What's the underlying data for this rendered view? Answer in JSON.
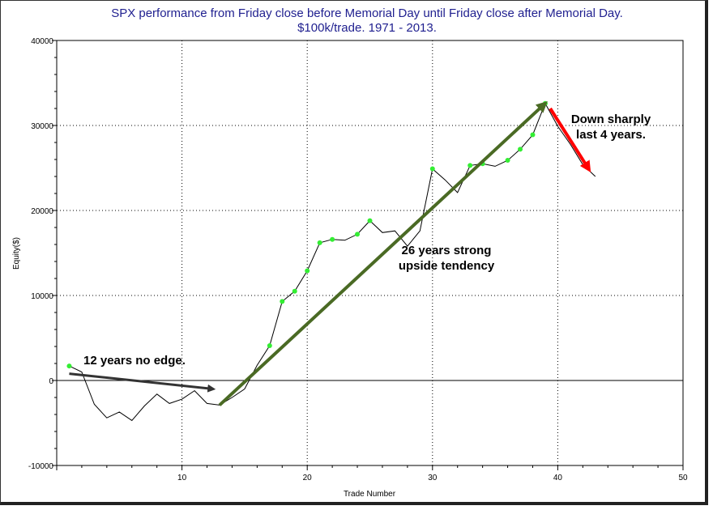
{
  "chart_data": {
    "type": "line",
    "title_lines": [
      "SPX performance from Friday close before Memorial Day until Friday close after Memorial Day.",
      "$100k/trade. 1971 - 2013."
    ],
    "xlabel": "Trade Number",
    "ylabel": "Equity($)",
    "xlim": [
      0,
      50
    ],
    "ylim": [
      -10000,
      40000
    ],
    "x_ticks": [
      10,
      20,
      30,
      40,
      50
    ],
    "y_ticks": [
      -10000,
      0,
      10000,
      20000,
      30000,
      40000
    ],
    "grid": "dotted",
    "series": [
      {
        "color": "#000000",
        "x": [
          1,
          2,
          3,
          4,
          5,
          6,
          7,
          8,
          9,
          10,
          11,
          12,
          13,
          14,
          15,
          16,
          17,
          18,
          19,
          20,
          21,
          22,
          23,
          24,
          25,
          26,
          27,
          28,
          29,
          30,
          31,
          32,
          33,
          34,
          35,
          36,
          37,
          38,
          39,
          40,
          41,
          42,
          43
        ],
        "y": [
          1700,
          1000,
          -2800,
          -4400,
          -3700,
          -4700,
          -3000,
          -1600,
          -2700,
          -2200,
          -1200,
          -2700,
          -2900,
          -2000,
          -1000,
          1800,
          4100,
          9300,
          10500,
          12900,
          16200,
          16600,
          16500,
          17200,
          18800,
          17400,
          17600,
          15800,
          17600,
          24900,
          23600,
          22100,
          25300,
          25500,
          25200,
          25900,
          27200,
          28900,
          32600,
          29900,
          27800,
          25400,
          24000
        ]
      }
    ],
    "highlight_color": "#33ee33",
    "highlight_x": [
      1,
      17,
      18,
      19,
      20,
      21,
      22,
      24,
      25,
      30,
      33,
      34,
      36,
      37,
      38,
      39
    ],
    "annotations": [
      {
        "text": "12 years no edge.",
        "arrow_color": "#333333",
        "arrow_from": [
          1,
          800
        ],
        "arrow_to": [
          12.5,
          -1000
        ]
      },
      {
        "text": "26 years strong",
        "text2": "upside tendency",
        "arrow_color": "#4a6a24",
        "arrow_from": [
          13,
          -2900
        ],
        "arrow_to": [
          39,
          32600
        ]
      },
      {
        "text": "Down sharply",
        "text2": "last 4 years.",
        "arrow_color": "#ff0000",
        "arrow_from": [
          39.4,
          32000
        ],
        "arrow_to": [
          42.5,
          24800
        ]
      }
    ]
  }
}
